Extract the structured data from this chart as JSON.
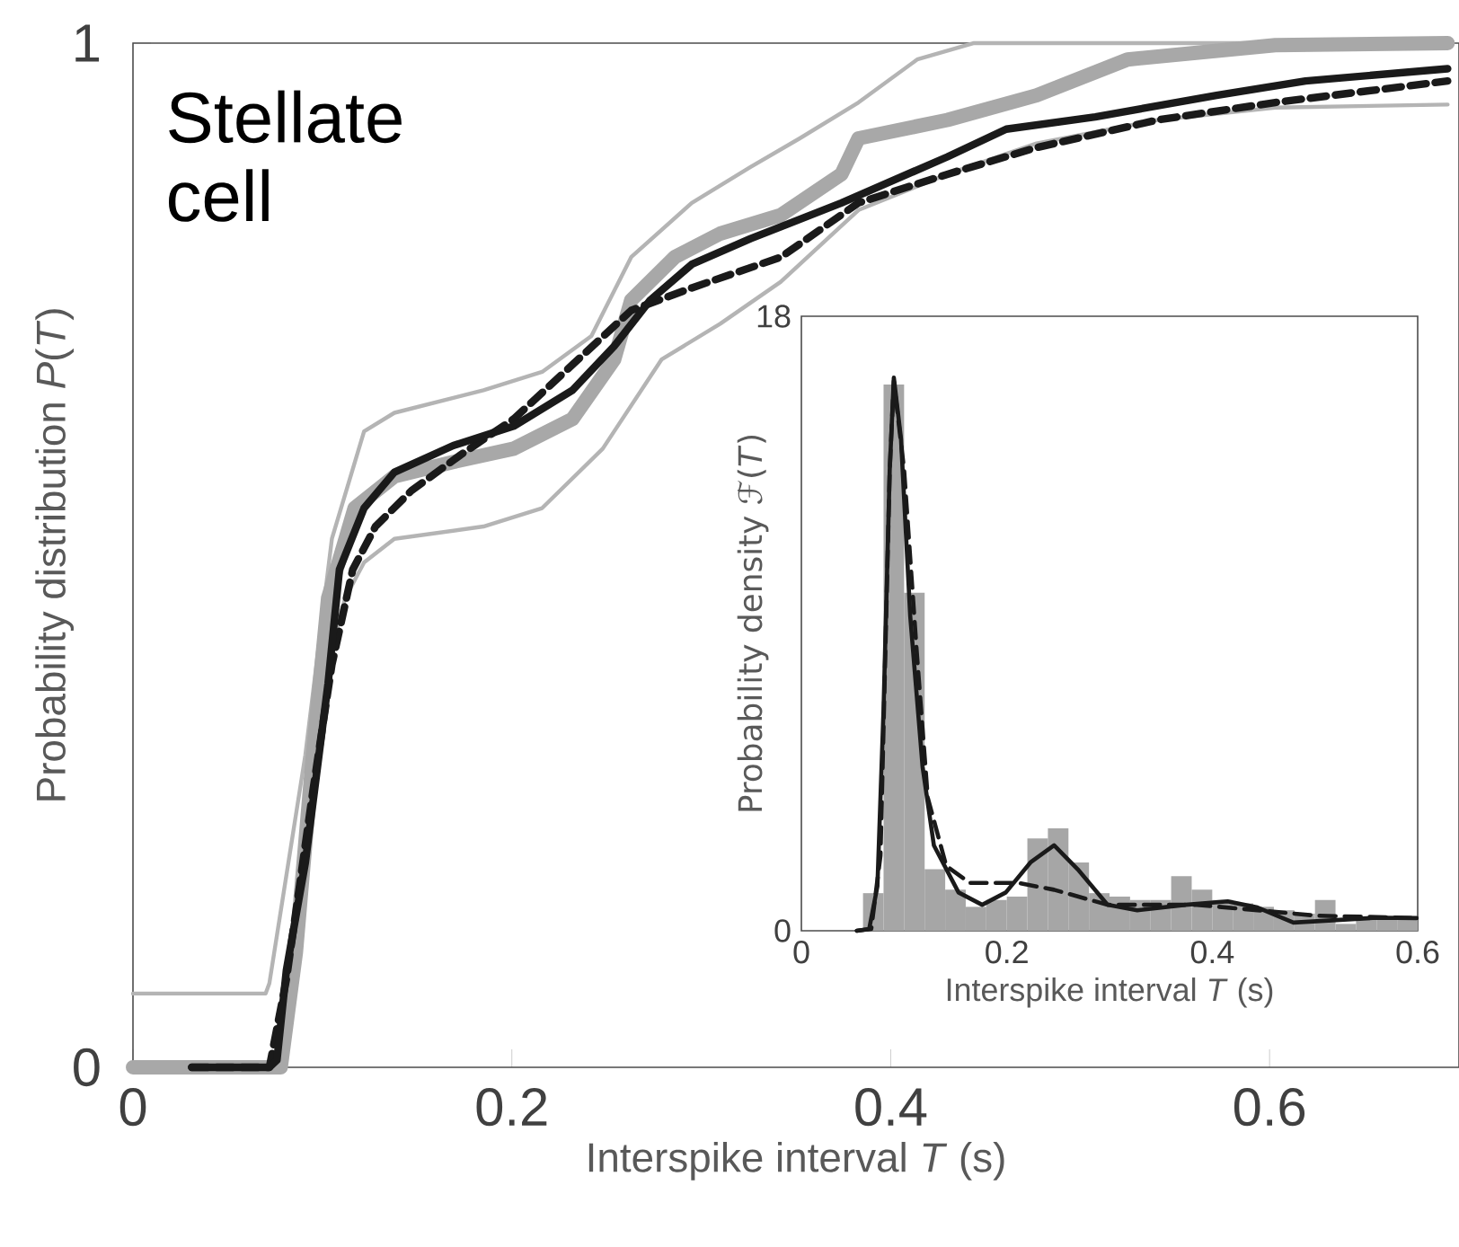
{
  "chart_data": [
    {
      "type": "line",
      "xlabel": "Interspike interval *T* (s)",
      "ylabel": "Probability distribution *P*(*T*)",
      "annotations": [
        "Stellate cell"
      ],
      "xlim": [
        0,
        0.7
      ],
      "ylim": [
        0,
        1
      ],
      "xticks": [
        0,
        0.2,
        0.4,
        0.6
      ],
      "yticks": [
        0,
        1
      ],
      "series": [
        {
          "color": "#b4b4b4",
          "x": [
            0,
            0.07,
            0.072,
            0.091,
            0.105,
            0.122,
            0.138,
            0.185,
            0.216,
            0.242,
            0.263,
            0.295,
            0.326,
            0.352,
            0.383,
            0.414,
            0.444,
            0.694
          ],
          "values": [
            0.072,
            0.072,
            0.082,
            0.305,
            0.516,
            0.621,
            0.639,
            0.661,
            0.679,
            0.714,
            0.791,
            0.844,
            0.879,
            0.907,
            0.942,
            0.984,
            1.0,
            1.0
          ]
        },
        {
          "color": "#b4b4b4",
          "x": [
            0,
            0.08,
            0.091,
            0.1,
            0.112,
            0.122,
            0.138,
            0.185,
            0.216,
            0.248,
            0.279,
            0.31,
            0.342,
            0.383,
            0.43,
            0.477,
            0.541,
            0.603,
            0.694
          ],
          "values": [
            0,
            0,
            0.218,
            0.375,
            0.458,
            0.493,
            0.516,
            0.528,
            0.546,
            0.604,
            0.691,
            0.726,
            0.767,
            0.837,
            0.872,
            0.902,
            0.925,
            0.937,
            0.94
          ]
        },
        {
          "color": "#a8a8a8",
          "x": [
            0,
            0.078,
            0.086,
            0.095,
            0.103,
            0.117,
            0.138,
            0.169,
            0.201,
            0.232,
            0.254,
            0.263,
            0.286,
            0.31,
            0.342,
            0.374,
            0.383,
            0.43,
            0.477,
            0.525,
            0.603,
            0.694
          ],
          "values": [
            0,
            0,
            0.112,
            0.305,
            0.458,
            0.546,
            0.577,
            0.591,
            0.604,
            0.633,
            0.691,
            0.749,
            0.791,
            0.814,
            0.832,
            0.872,
            0.907,
            0.925,
            0.949,
            0.984,
            0.998,
            1.0
          ]
        },
        {
          "color": "#1a1a1a",
          "line_style": "dashed",
          "x": [
            0.031,
            0.072,
            0.081,
            0.095,
            0.105,
            0.116,
            0.128,
            0.147,
            0.173,
            0.201,
            0.232,
            0.263,
            0.295,
            0.342,
            0.383,
            0.43,
            0.477,
            0.541,
            0.603,
            0.694
          ],
          "values": [
            0,
            0,
            0.086,
            0.27,
            0.393,
            0.486,
            0.528,
            0.563,
            0.598,
            0.633,
            0.686,
            0.739,
            0.761,
            0.791,
            0.844,
            0.872,
            0.898,
            0.925,
            0.942,
            0.963
          ]
        },
        {
          "color": "#1a1a1a",
          "line_style": "solid",
          "x": [
            0.031,
            0.072,
            0.076,
            0.081,
            0.091,
            0.103,
            0.109,
            0.122,
            0.138,
            0.169,
            0.201,
            0.232,
            0.254,
            0.273,
            0.295,
            0.326,
            0.374,
            0.43,
            0.461,
            0.508,
            0.572,
            0.619,
            0.694
          ],
          "values": [
            0,
            0,
            0.007,
            0.095,
            0.2,
            0.375,
            0.486,
            0.546,
            0.581,
            0.607,
            0.626,
            0.661,
            0.704,
            0.749,
            0.784,
            0.809,
            0.844,
            0.889,
            0.916,
            0.928,
            0.949,
            0.963,
            0.975
          ]
        }
      ]
    },
    {
      "type": "histogram",
      "xlabel": "Interspike interval *T* (s)",
      "ylabel": "Probability density ℱ(*T*)",
      "xlim": [
        0,
        0.6
      ],
      "ylim": [
        0,
        18
      ],
      "xticks": [
        0,
        0.2,
        0.4,
        0.6
      ],
      "yticks": [
        0,
        18
      ],
      "series": [
        {
          "type": "histogram",
          "color": "#a6a6a6",
          "bins": [
            0.06,
            0.08,
            0.1,
            0.12,
            0.14,
            0.16,
            0.18,
            0.2,
            0.22,
            0.24,
            0.26,
            0.28,
            0.3,
            0.32,
            0.34,
            0.36,
            0.38,
            0.4,
            0.42,
            0.44,
            0.46,
            0.48,
            0.5,
            0.52,
            0.54,
            0.56,
            0.58,
            0.6
          ],
          "values": [
            1.1,
            16.0,
            9.9,
            1.8,
            1.2,
            0.7,
            0.9,
            1.0,
            2.7,
            3.0,
            2.0,
            1.1,
            1.0,
            0.9,
            0.9,
            1.6,
            1.2,
            0.9,
            0.8,
            0.7,
            0.6,
            0.5,
            0.9,
            0.2,
            0.4,
            0.4,
            0.4
          ]
        },
        {
          "type": "line",
          "color": "#1a1a1a",
          "line_style": "dashed",
          "x": [
            0.054,
            0.068,
            0.077,
            0.086,
            0.09,
            0.1,
            0.112,
            0.123,
            0.141,
            0.164,
            0.211,
            0.246,
            0.298,
            0.385,
            0.444,
            0.502,
            0.599
          ],
          "values": [
            0,
            0.05,
            2.2,
            13.5,
            16.1,
            13.5,
            8.3,
            3.9,
            1.9,
            1.4,
            1.4,
            1.2,
            0.76,
            0.76,
            0.6,
            0.44,
            0.37
          ]
        },
        {
          "type": "line",
          "color": "#1a1a1a",
          "line_style": "solid",
          "x": [
            0.054,
            0.066,
            0.074,
            0.08,
            0.086,
            0.09,
            0.097,
            0.106,
            0.118,
            0.129,
            0.153,
            0.176,
            0.199,
            0.223,
            0.246,
            0.269,
            0.298,
            0.327,
            0.374,
            0.415,
            0.444,
            0.479,
            0.502,
            0.56,
            0.599
          ],
          "values": [
            0,
            0.05,
            1.3,
            6.5,
            13.5,
            16.2,
            14.4,
            9.2,
            4.8,
            2.5,
            1.12,
            0.76,
            1.12,
            2.0,
            2.5,
            1.8,
            0.76,
            0.6,
            0.76,
            0.86,
            0.68,
            0.24,
            0.28,
            0.38,
            0.37
          ]
        }
      ]
    }
  ]
}
